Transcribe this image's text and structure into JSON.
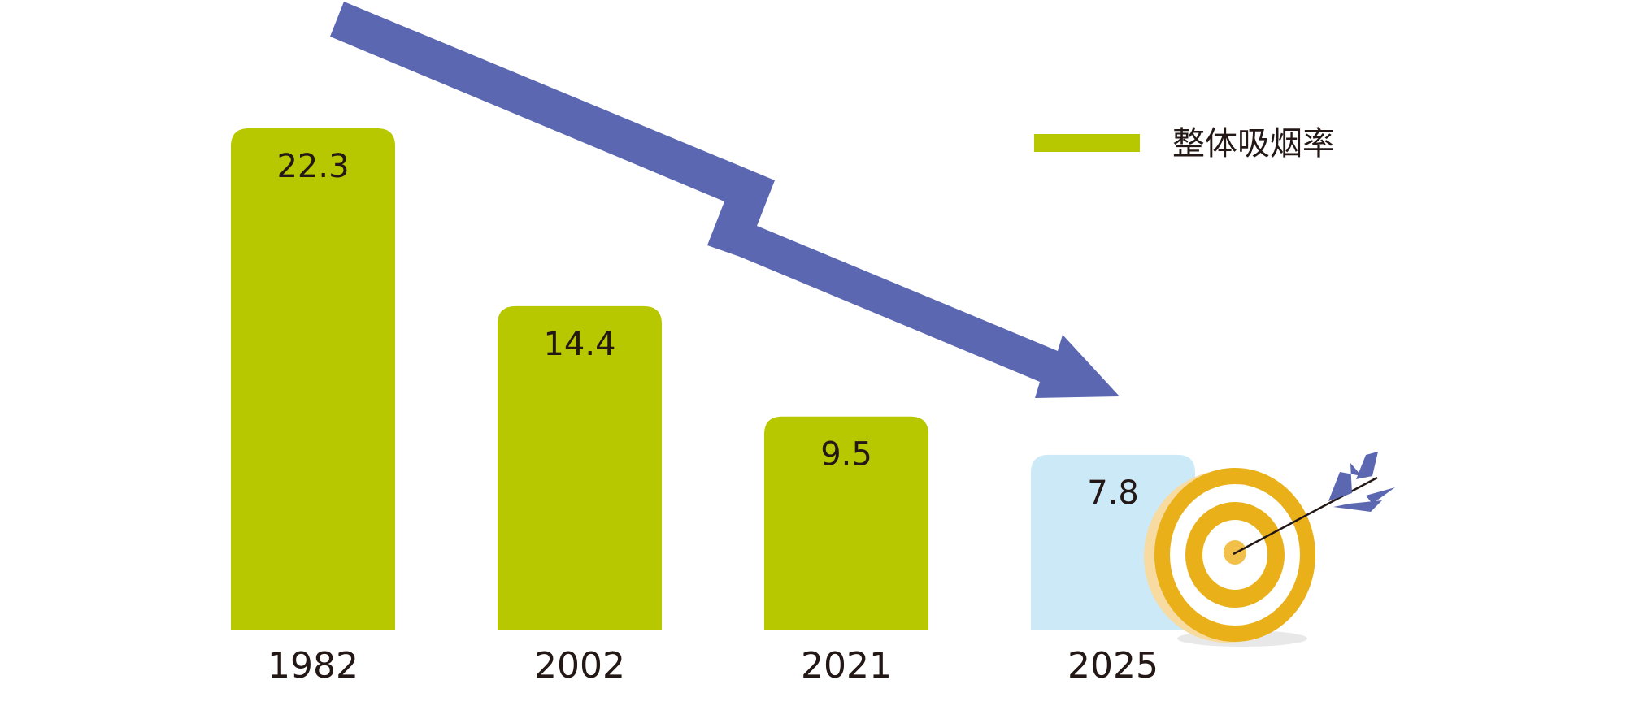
{
  "chart_data": {
    "type": "bar",
    "categories": [
      "1982",
      "2002",
      "2021",
      "2025"
    ],
    "series": [
      {
        "name": "整体吸烟率",
        "values": [
          22.3,
          14.4,
          9.5,
          7.8
        ]
      }
    ],
    "value_labels": [
      "22.3",
      "14.4",
      "9.5",
      "7.8"
    ],
    "title": "",
    "xlabel": "",
    "ylabel": "",
    "ylim": [
      0,
      22.3
    ],
    "grid": false,
    "legend": "top-right",
    "colors": {
      "actual": "#b7c700",
      "target": "#cce9f8",
      "trend_arrow": "#5b67b1",
      "target_icon_gold": "#eab019",
      "target_icon_light": "#f7dba0"
    },
    "annotations": [
      "downward-trend-arrow",
      "target-with-arrow-icon"
    ]
  }
}
